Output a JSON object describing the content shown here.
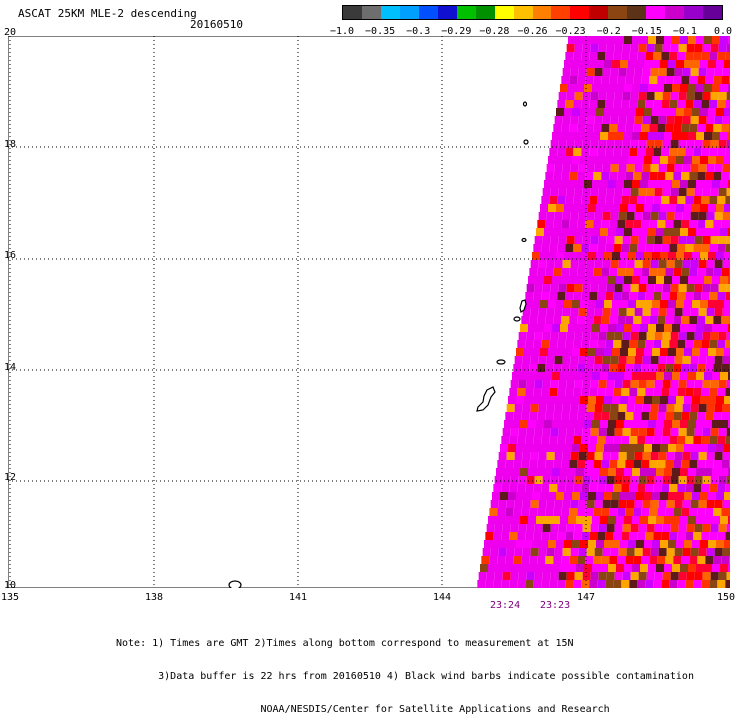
{
  "header": {
    "title": "ASCAT 25KM MLE-2 descending",
    "date": "20160510"
  },
  "colorbar": {
    "colors": [
      "#3a3a3a",
      "#6e6e6e",
      "#00bfff",
      "#00a0ff",
      "#0050ff",
      "#1010d0",
      "#00c000",
      "#009000",
      "#ffff00",
      "#ffc000",
      "#ff8000",
      "#ff4000",
      "#ff0000",
      "#c00000",
      "#8b4513",
      "#5c3317",
      "#ff00ff",
      "#cc00cc",
      "#9900cc",
      "#660099"
    ],
    "ticks": [
      "−1.0",
      "−0.35",
      "−0.3",
      "−0.29",
      "−0.28",
      "−0.26",
      "−0.23",
      "−0.2",
      "−0.15",
      "−0.1",
      "0.0"
    ]
  },
  "map": {
    "lon_range": [
      135,
      150
    ],
    "lat_range": [
      10,
      20
    ],
    "x_ticks": [
      "135",
      "138",
      "141",
      "144",
      "147",
      "150"
    ],
    "y_ticks": [
      "20",
      "18",
      "16",
      "14",
      "12",
      "10"
    ],
    "pass_times": [
      "23:24",
      "23:23"
    ]
  },
  "notes": [
    "Note: 1) Times are GMT 2)Times along bottom correspond to measurement at 15N",
    "       3)Data buffer is 22 hrs from 20160510 4) Black wind barbs indicate possible contamination",
    "                        NOAA/NESDIS/Center for Satellite Applications and Research"
  ]
}
